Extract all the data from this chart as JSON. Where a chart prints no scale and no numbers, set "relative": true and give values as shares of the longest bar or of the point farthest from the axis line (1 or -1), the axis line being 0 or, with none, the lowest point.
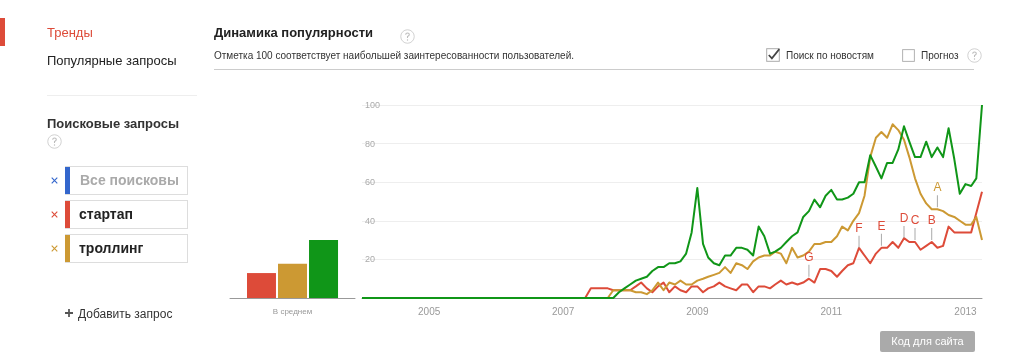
{
  "chart_data": [
    {
      "type": "other",
      "annotations": [
        "Тренды",
        "Популярные запросы",
        "Поисковые запросы",
        "Все поисковы",
        "Добавить запрос"
      ]
    },
    {
      "type": "bar",
      "relative": true,
      "categories": [
        null
      ],
      "xlabel": "В среднем",
      "series": [
        {
          "color": "#dd4b39",
          "values": [
            0.43
          ]
        },
        {
          "color": "#cc9933",
          "values": [
            0.59
          ]
        },
        {
          "color": "#109618",
          "values": [
            1
          ]
        }
      ]
    },
    {
      "type": "line",
      "title": "Динамика популярности",
      "subtitle": "Отметка 100 соответствует наибольшей заинтересованности пользователей.",
      "legend": "left",
      "grid": "y",
      "xlim": [
        "2004-01",
        "2013-04"
      ],
      "xticks": [
        "2005",
        "2007",
        "2009",
        "2011",
        "2013"
      ],
      "ylim": [
        0,
        100
      ],
      "yticks": [
        {
          "value": 0,
          "label": null
        },
        20,
        40,
        60,
        80,
        100
      ],
      "annotations": [
        "Поиск по новостям",
        "Прогноз",
        "Код для сайта",
        {
          "text": "A",
          "x": "2012-08",
          "y": 46
        },
        {
          "text": "B",
          "x": "2012-07",
          "y": 29
        },
        {
          "text": "C",
          "x": "2012-04",
          "y": 29
        },
        {
          "text": "D",
          "x": "2012-02",
          "y": 30
        },
        {
          "text": "E",
          "x": "2011-10",
          "y": 26
        },
        {
          "text": "F",
          "x": "2011-06",
          "y": 25
        },
        {
          "text": "G",
          "x": "2010-09",
          "y": 10
        }
      ],
      "series": [
        {
          "name": "стартап",
          "color": "#dd4b39",
          "x": [
            "2004-01",
            "2007-05",
            "2007-06",
            "2007-07",
            "2007-08",
            "2007-09",
            "2007-10",
            "2007-11",
            "2007-12",
            "2008-01",
            "2008-02",
            "2008-03",
            "2008-04",
            "2008-05",
            "2008-06",
            "2008-07",
            "2008-08",
            "2008-09",
            "2008-10",
            "2008-11",
            "2008-12",
            "2009-01",
            "2009-02",
            "2009-03",
            "2009-04",
            "2009-05",
            "2009-06",
            "2009-07",
            "2009-08",
            "2009-09",
            "2009-10",
            "2009-11",
            "2009-12",
            "2010-01",
            "2010-02",
            "2010-03",
            "2010-04",
            "2010-05",
            "2010-06",
            "2010-07",
            "2010-08",
            "2010-09",
            "2010-10",
            "2010-11",
            "2010-12",
            "2011-01",
            "2011-02",
            "2011-03",
            "2011-04",
            "2011-05",
            "2011-06",
            "2011-07",
            "2011-08",
            "2011-09",
            "2011-10",
            "2011-11",
            "2011-12",
            "2012-01",
            "2012-02",
            "2012-03",
            "2012-04",
            "2012-05",
            "2012-06",
            "2012-07",
            "2012-08",
            "2012-09",
            "2012-10",
            "2012-11",
            "2012-12",
            "2013-01",
            "2013-02",
            "2013-03",
            "2013-04"
          ],
          "values": [
            0,
            0,
            5,
            5,
            5,
            5,
            4,
            4,
            4,
            4,
            6,
            8,
            5,
            3,
            6,
            8,
            3,
            6,
            4,
            3,
            6,
            6,
            3,
            5,
            6,
            8,
            6,
            5,
            4,
            7,
            7,
            3,
            6,
            6,
            5,
            7,
            9,
            7,
            8,
            7,
            8,
            10,
            8,
            15,
            15,
            14,
            11,
            14,
            17,
            18,
            26,
            22,
            18,
            23,
            26,
            26,
            29,
            26,
            31,
            29,
            29,
            25,
            27,
            29,
            26,
            27,
            37,
            34,
            34,
            34,
            34,
            44,
            55
          ]
        },
        {
          "name": "троллинг",
          "color": "#cc9933",
          "x": [
            "2004-01",
            "2007-09",
            "2007-10",
            "2007-11",
            "2007-12",
            "2008-01",
            "2008-02",
            "2008-03",
            "2008-04",
            "2008-05",
            "2008-06",
            "2008-07",
            "2008-08",
            "2008-09",
            "2008-10",
            "2008-11",
            "2008-12",
            "2009-01",
            "2009-02",
            "2009-03",
            "2009-04",
            "2009-05",
            "2009-06",
            "2009-07",
            "2009-08",
            "2009-09",
            "2009-10",
            "2009-11",
            "2009-12",
            "2010-01",
            "2010-02",
            "2010-03",
            "2010-04",
            "2010-05",
            "2010-06",
            "2010-07",
            "2010-08",
            "2010-09",
            "2010-10",
            "2010-11",
            "2010-12",
            "2011-01",
            "2011-02",
            "2011-03",
            "2011-04",
            "2011-05",
            "2011-06",
            "2011-07",
            "2011-08",
            "2011-09",
            "2011-10",
            "2011-11",
            "2011-12",
            "2012-01",
            "2012-02",
            "2012-03",
            "2012-04",
            "2012-05",
            "2012-06",
            "2012-07",
            "2012-08",
            "2012-09",
            "2012-10",
            "2012-11",
            "2012-12",
            "2013-01",
            "2013-02",
            "2013-03",
            "2013-04"
          ],
          "values": [
            0,
            0,
            4,
            4,
            4,
            4,
            3,
            3,
            2,
            4,
            8,
            4,
            8,
            7,
            9,
            7,
            7,
            9,
            10,
            11,
            12,
            13,
            16,
            13,
            18,
            17,
            15,
            19,
            21,
            22,
            22,
            24,
            23,
            18,
            26,
            21,
            22,
            24,
            28,
            28,
            29,
            29,
            32,
            37,
            35,
            40,
            44,
            53,
            73,
            83,
            86,
            83,
            90,
            87,
            82,
            73,
            62,
            54,
            49,
            46,
            46,
            45,
            43,
            42,
            40,
            38,
            38,
            42,
            30
          ]
        },
        {
          "color": "#109618",
          "x": [
            "2004-01",
            "2007-10",
            "2007-11",
            "2007-12",
            "2008-01",
            "2008-02",
            "2008-03",
            "2008-04",
            "2008-05",
            "2008-06",
            "2008-07",
            "2008-08",
            "2008-09",
            "2008-10",
            "2008-11",
            "2008-12",
            "2009-01",
            "2009-02",
            "2009-03",
            "2009-04",
            "2009-05",
            "2009-06",
            "2009-07",
            "2009-08",
            "2009-09",
            "2009-10",
            "2009-11",
            "2009-12",
            "2010-01",
            "2010-02",
            "2010-03",
            "2010-04",
            "2010-05",
            "2010-06",
            "2010-07",
            "2010-08",
            "2010-09",
            "2010-10",
            "2010-11",
            "2010-12",
            "2011-01",
            "2011-02",
            "2011-03",
            "2011-04",
            "2011-05",
            "2011-06",
            "2011-07",
            "2011-08",
            "2011-09",
            "2011-10",
            "2011-11",
            "2011-12",
            "2012-01",
            "2012-02",
            "2012-03",
            "2012-04",
            "2012-05",
            "2012-06",
            "2012-07",
            "2012-08",
            "2012-09",
            "2012-10",
            "2012-11",
            "2012-12",
            "2013-01",
            "2013-02",
            "2013-03",
            "2013-04"
          ],
          "values": [
            0,
            0,
            3,
            5,
            7,
            9,
            10,
            11,
            14,
            16,
            16,
            18,
            18,
            19,
            23,
            34,
            57,
            28,
            21,
            18,
            17,
            22,
            22,
            26,
            26,
            25,
            22,
            37,
            32,
            23,
            24,
            26,
            29,
            32,
            34,
            42,
            45,
            51,
            47,
            53,
            56,
            51,
            51,
            52,
            54,
            60,
            60,
            74,
            68,
            62,
            70,
            70,
            77,
            89,
            81,
            73,
            73,
            81,
            73,
            78,
            73,
            88,
            72,
            54,
            59,
            58,
            62,
            100
          ]
        }
      ]
    }
  ]
}
